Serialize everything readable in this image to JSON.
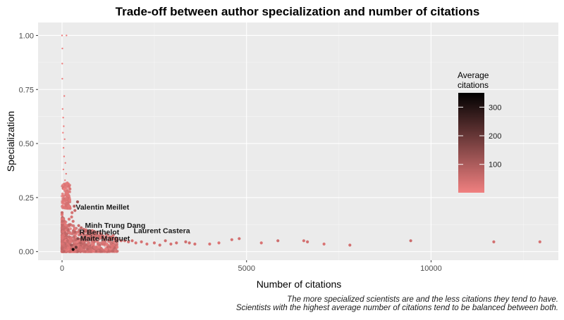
{
  "chart_data": {
    "type": "scatter",
    "title": "Trade-off between author specialization and number of citations",
    "xlabel": "Number of citations",
    "ylabel": "Specialization",
    "xlim": [
      -650,
      13450
    ],
    "ylim": [
      -0.04,
      1.06
    ],
    "x_ticks": [
      0,
      5000,
      10000
    ],
    "x_tick_labels": [
      "0",
      "5000",
      "10000"
    ],
    "y_ticks": [
      0.0,
      0.25,
      0.5,
      0.75,
      1.0
    ],
    "y_tick_labels": [
      "0.00",
      "0.25",
      "0.50",
      "0.75",
      "1.00"
    ],
    "grid": true,
    "panel_background": "#ebebeb",
    "color_scale": {
      "title": "Average\ncitations",
      "min": 1,
      "max": 350,
      "low_color": "#f08080",
      "high_color": "#000000",
      "breaks": [
        100,
        200,
        300
      ],
      "break_labels": [
        "100",
        "200",
        "300"
      ],
      "placement": "right"
    },
    "points": [
      {
        "x": 0,
        "y": 1.0,
        "c": 2
      },
      {
        "x": 120,
        "y": 1.0,
        "c": 3
      },
      {
        "x": 10,
        "y": 0.94,
        "c": 2
      },
      {
        "x": 5,
        "y": 0.87,
        "c": 5
      },
      {
        "x": 8,
        "y": 0.8,
        "c": 3
      },
      {
        "x": 60,
        "y": 0.72,
        "c": 8
      },
      {
        "x": 15,
        "y": 0.66,
        "c": 2
      },
      {
        "x": 30,
        "y": 0.62,
        "c": 4
      },
      {
        "x": 45,
        "y": 0.58,
        "c": 6
      },
      {
        "x": 25,
        "y": 0.55,
        "c": 3
      },
      {
        "x": 70,
        "y": 0.52,
        "c": 10
      },
      {
        "x": 40,
        "y": 0.48,
        "c": 5
      },
      {
        "x": 55,
        "y": 0.44,
        "c": 7
      },
      {
        "x": 90,
        "y": 0.41,
        "c": 12
      },
      {
        "x": 35,
        "y": 0.38,
        "c": 4
      },
      {
        "x": 110,
        "y": 0.36,
        "c": 15
      },
      {
        "x": 80,
        "y": 0.33,
        "c": 9
      },
      {
        "x": 130,
        "y": 0.31,
        "c": 18
      },
      {
        "x": 60,
        "y": 0.29,
        "c": 6
      },
      {
        "x": 150,
        "y": 0.27,
        "c": 20
      },
      {
        "x": 180,
        "y": 0.26,
        "c": 25
      },
      {
        "x": 420,
        "y": 0.23,
        "c": 120
      },
      {
        "x": 330,
        "y": 0.21,
        "c": 90
      },
      {
        "x": 350,
        "y": 0.19,
        "c": 60
      },
      {
        "x": 270,
        "y": 0.18,
        "c": 40
      },
      {
        "x": 220,
        "y": 0.2,
        "c": 30
      },
      {
        "x": 260,
        "y": 0.16,
        "c": 35
      },
      {
        "x": 300,
        "y": 0.14,
        "c": 45
      },
      {
        "x": 190,
        "y": 0.15,
        "c": 28
      },
      {
        "x": 450,
        "y": 0.12,
        "c": 60
      },
      {
        "x": 520,
        "y": 0.11,
        "c": 70
      },
      {
        "x": 600,
        "y": 0.1,
        "c": 55
      },
      {
        "x": 700,
        "y": 0.09,
        "c": 65
      },
      {
        "x": 800,
        "y": 0.08,
        "c": 60
      },
      {
        "x": 900,
        "y": 0.075,
        "c": 50
      },
      {
        "x": 1000,
        "y": 0.07,
        "c": 55
      },
      {
        "x": 1100,
        "y": 0.07,
        "c": 45
      },
      {
        "x": 1200,
        "y": 0.065,
        "c": 50
      },
      {
        "x": 1300,
        "y": 0.06,
        "c": 40
      },
      {
        "x": 1400,
        "y": 0.06,
        "c": 45
      },
      {
        "x": 1500,
        "y": 0.055,
        "c": 50
      },
      {
        "x": 1600,
        "y": 0.05,
        "c": 40
      },
      {
        "x": 1700,
        "y": 0.05,
        "c": 35
      },
      {
        "x": 1800,
        "y": 0.045,
        "c": 40
      },
      {
        "x": 1900,
        "y": 0.05,
        "c": 45
      },
      {
        "x": 2000,
        "y": 0.04,
        "c": 35
      },
      {
        "x": 2150,
        "y": 0.045,
        "c": 40
      },
      {
        "x": 2300,
        "y": 0.035,
        "c": 35
      },
      {
        "x": 2500,
        "y": 0.04,
        "c": 40
      },
      {
        "x": 2650,
        "y": 0.03,
        "c": 45
      },
      {
        "x": 2800,
        "y": 0.05,
        "c": 50
      },
      {
        "x": 2950,
        "y": 0.035,
        "c": 40
      },
      {
        "x": 3100,
        "y": 0.04,
        "c": 45
      },
      {
        "x": 3350,
        "y": 0.045,
        "c": 50
      },
      {
        "x": 3450,
        "y": 0.04,
        "c": 45
      },
      {
        "x": 3600,
        "y": 0.035,
        "c": 40
      },
      {
        "x": 4000,
        "y": 0.035,
        "c": 35
      },
      {
        "x": 4250,
        "y": 0.04,
        "c": 30
      },
      {
        "x": 4600,
        "y": 0.055,
        "c": 40
      },
      {
        "x": 4800,
        "y": 0.06,
        "c": 45
      },
      {
        "x": 5400,
        "y": 0.04,
        "c": 35
      },
      {
        "x": 5850,
        "y": 0.05,
        "c": 50
      },
      {
        "x": 6550,
        "y": 0.05,
        "c": 40
      },
      {
        "x": 6650,
        "y": 0.045,
        "c": 45
      },
      {
        "x": 7100,
        "y": 0.035,
        "c": 35
      },
      {
        "x": 7800,
        "y": 0.03,
        "c": 45
      },
      {
        "x": 9450,
        "y": 0.05,
        "c": 55
      },
      {
        "x": 11700,
        "y": 0.045,
        "c": 45
      },
      {
        "x": 12950,
        "y": 0.045,
        "c": 40
      },
      {
        "x": 300,
        "y": 0.01,
        "c": 320
      },
      {
        "x": 380,
        "y": 0.02,
        "c": 200
      },
      {
        "x": 250,
        "y": 0.03,
        "c": 110
      },
      {
        "x": 500,
        "y": 0.04,
        "c": 90
      },
      {
        "x": 430,
        "y": 0.06,
        "c": 150
      },
      {
        "x": 350,
        "y": 0.09,
        "c": 80
      },
      {
        "x": 150,
        "y": 0.05,
        "c": 60
      }
    ],
    "cluster": {
      "x_max": 1500,
      "y_max": 0.2
    },
    "annotations": [
      {
        "text": "Valentin Meillet",
        "x": 370,
        "y": 0.195
      },
      {
        "text": "Minh Trung Dang",
        "x": 620,
        "y": 0.11
      },
      {
        "text": "Laurent Castera",
        "x": 1940,
        "y": 0.085
      },
      {
        "text": "R Berthelot",
        "x": 470,
        "y": 0.078
      },
      {
        "text": "Maite Marguet",
        "x": 490,
        "y": 0.05
      }
    ]
  },
  "caption": {
    "line1": "The more specialized scientists are and the less citations they tend to have.",
    "line2": "Scientists with the highest average number of citations tend to be balanced between both."
  }
}
